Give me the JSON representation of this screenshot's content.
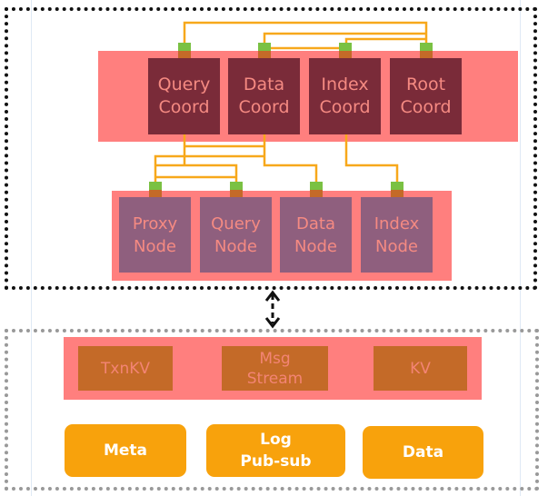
{
  "coordinators": [
    {
      "label": "Query\nCoord"
    },
    {
      "label": "Data\nCoord"
    },
    {
      "label": "Index\nCoord"
    },
    {
      "label": "Root\nCoord"
    }
  ],
  "nodes": [
    {
      "label": "Proxy\nNode"
    },
    {
      "label": "Query\nNode"
    },
    {
      "label": "Data\nNode"
    },
    {
      "label": "Index\nNode"
    }
  ],
  "storage": [
    {
      "label": "TxnKV"
    },
    {
      "label": "Msg\nStream"
    },
    {
      "label": "KV"
    }
  ],
  "tiers": [
    {
      "label": "Meta"
    },
    {
      "label": "Log\nPub-sub"
    },
    {
      "label": "Data"
    }
  ],
  "colors": {
    "band": "#ff7f7e",
    "coord": "#7a2b39",
    "node": "#8f5f7e",
    "storage": "#c46a28",
    "tier": "#f8a20c",
    "connector": "#7ac143",
    "wire": "#f7a81b"
  }
}
